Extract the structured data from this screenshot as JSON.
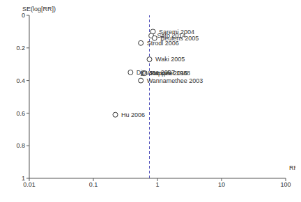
{
  "chart_data": {
    "type": "scatter",
    "x_label": "RR",
    "y_label": "SE(log[RR])",
    "log": "x",
    "xlim": [
      0.01,
      100
    ],
    "xticks": [
      0.01,
      0.1,
      1,
      10,
      100
    ],
    "ylim": [
      0,
      1
    ],
    "yticks": [
      0,
      0.2,
      0.4,
      0.6,
      0.8,
      1
    ],
    "pooled_estimate": 0.75,
    "color": "#333333",
    "marker": "hollow_circle",
    "points": [
      {
        "name": "Saremi 2004",
        "x": 0.85,
        "y": 0.1
      },
      {
        "name": "Sato 2014",
        "x": 0.8,
        "y": 0.125
      },
      {
        "name": "Beulens 2005",
        "x": 0.9,
        "y": 0.14
      },
      {
        "name": "Strodl 2006",
        "x": 0.55,
        "y": 0.17
      },
      {
        "name": "Waki 2005",
        "x": 0.75,
        "y": 0.27
      },
      {
        "name": "Djousse 2007",
        "x": 0.38,
        "y": 0.35
      },
      {
        "name": "Stampfer 1988",
        "x": 0.6,
        "y": 0.355
      },
      {
        "name": "Koppes 2016",
        "x": 0.63,
        "y": 0.355
      },
      {
        "name": "Wannamethee 2003",
        "x": 0.55,
        "y": 0.4
      },
      {
        "name": "Hu 2006",
        "x": 0.22,
        "y": 0.61
      }
    ]
  }
}
